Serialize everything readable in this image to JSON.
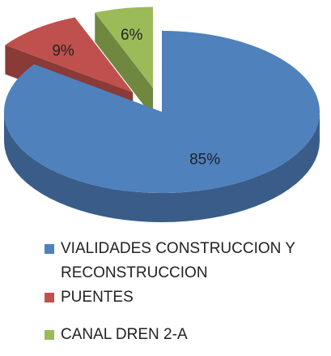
{
  "chart_data": {
    "type": "pie",
    "categories": [
      "VIALIDADES CONSTRUCCION Y RECONSTRUCCION",
      "PUENTES",
      "CANAL  DREN 2-A"
    ],
    "values": [
      85,
      9,
      6
    ],
    "value_labels": [
      "85%",
      "9%",
      "6%"
    ],
    "colors": [
      "#4f81bd",
      "#c0504d",
      "#9bbb59"
    ],
    "legend": "bottom"
  }
}
